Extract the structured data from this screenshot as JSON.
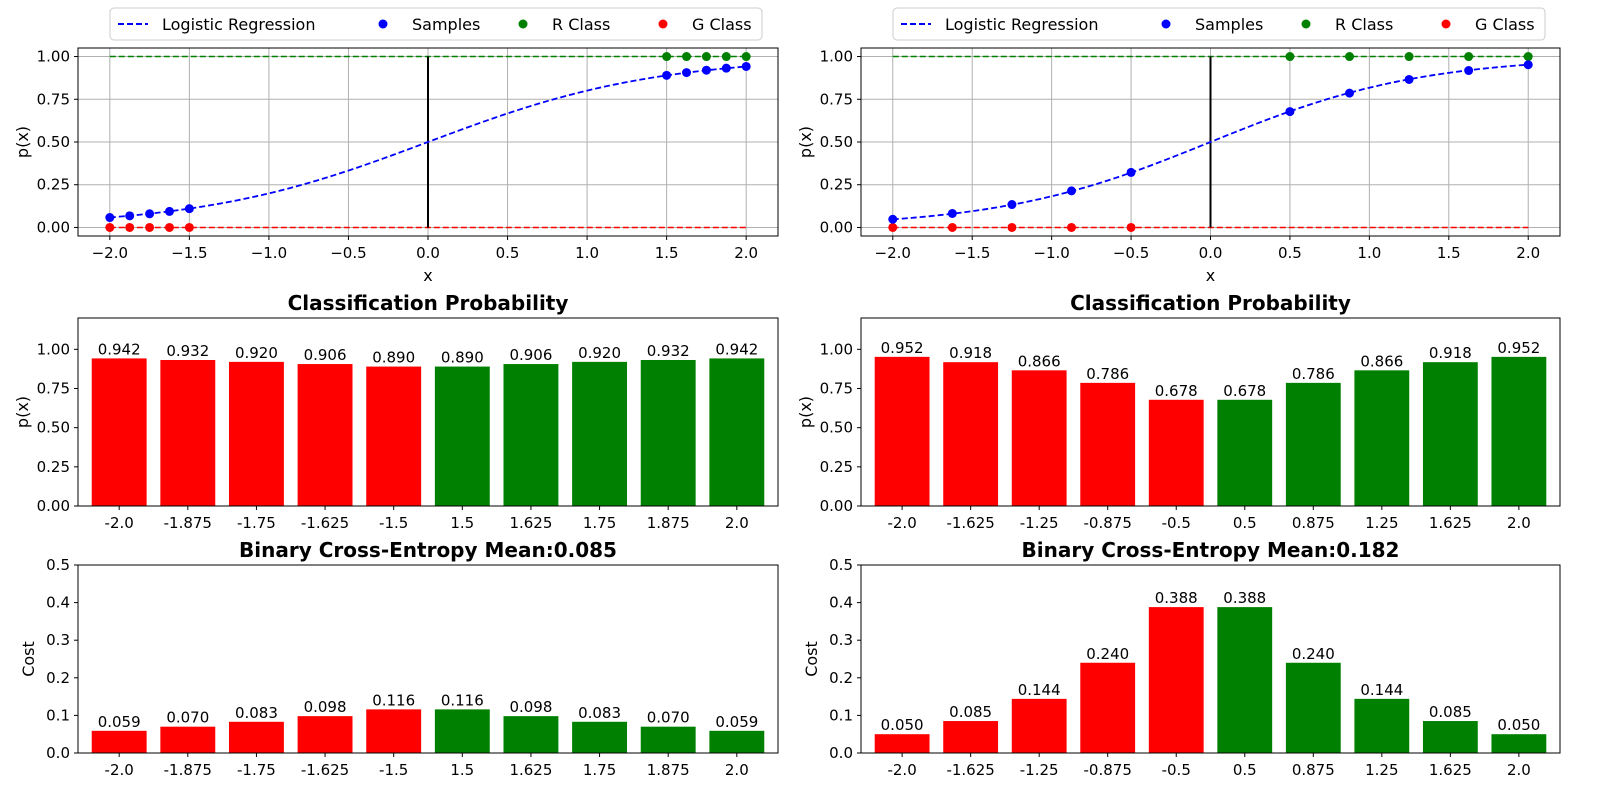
{
  "colors": {
    "line": "#0000ff",
    "samples": "#0000ff",
    "r_class": "#008000",
    "g_class": "#ff0000",
    "grid": "#b0b0b0",
    "boundary": "#000000"
  },
  "chart_data": [
    {
      "type": "line",
      "panel": "top-left",
      "legend": {
        "placement": "top-center",
        "entries": [
          "Logistic Regression",
          "Samples",
          "R Class",
          "G Class"
        ]
      },
      "xlabel": "x",
      "ylabel": "p(x)",
      "xlim": [
        -2.2,
        2.2
      ],
      "ylim": [
        -0.05,
        1.05
      ],
      "xticks": [
        -2.0,
        -1.5,
        -1.0,
        -0.5,
        0.0,
        0.5,
        1.0,
        1.5,
        2.0
      ],
      "xtick_labels": [
        "−2.0",
        "−1.5",
        "−1.0",
        "−0.5",
        "0.0",
        "0.5",
        "1.0",
        "1.5",
        "2.0"
      ],
      "yticks": [
        0,
        0.25,
        0.5,
        0.75,
        1.0
      ],
      "ytick_labels": [
        "0.00",
        "0.25",
        "0.50",
        "0.75",
        "1.00"
      ],
      "grid": true,
      "curve_k": 1.39,
      "boundary_x": 0,
      "sample_x": [
        -2.0,
        -1.875,
        -1.75,
        -1.625,
        -1.5,
        1.5,
        1.625,
        1.75,
        1.875,
        2.0
      ],
      "sample_p": [
        0.058,
        0.068,
        0.08,
        0.094,
        0.11,
        0.89,
        0.906,
        0.92,
        0.932,
        0.942
      ],
      "g_class_x": [
        -2.0,
        -1.875,
        -1.75,
        -1.625,
        -1.5
      ],
      "r_class_x": [
        1.5,
        1.625,
        1.75,
        1.875,
        2.0
      ]
    },
    {
      "type": "line",
      "panel": "top-right",
      "legend": {
        "placement": "top-center",
        "entries": [
          "Logistic Regression",
          "Samples",
          "R Class",
          "G Class"
        ]
      },
      "xlabel": "x",
      "ylabel": "p(x)",
      "xlim": [
        -2.2,
        2.2
      ],
      "ylim": [
        -0.05,
        1.05
      ],
      "xticks": [
        -2.0,
        -1.5,
        -1.0,
        -0.5,
        0.0,
        0.5,
        1.0,
        1.5,
        2.0
      ],
      "xtick_labels": [
        "−2.0",
        "−1.5",
        "−1.0",
        "−0.5",
        "0.0",
        "0.5",
        "1.0",
        "1.5",
        "2.0"
      ],
      "yticks": [
        0,
        0.25,
        0.5,
        0.75,
        1.0
      ],
      "ytick_labels": [
        "0.00",
        "0.25",
        "0.50",
        "0.75",
        "1.00"
      ],
      "grid": true,
      "curve_k": 1.5,
      "boundary_x": 0,
      "sample_x": [
        -2.0,
        -1.625,
        -1.25,
        -0.875,
        -0.5,
        0.5,
        0.875,
        1.25,
        1.625,
        2.0
      ],
      "sample_p": [
        0.048,
        0.082,
        0.134,
        0.214,
        0.322,
        0.678,
        0.786,
        0.866,
        0.918,
        0.952
      ],
      "g_class_x": [
        -2.0,
        -1.625,
        -1.25,
        -0.875,
        -0.5
      ],
      "r_class_x": [
        0.5,
        0.875,
        1.25,
        1.625,
        2.0
      ]
    },
    {
      "type": "bar",
      "panel": "middle-left",
      "title": "Classification Probability",
      "ylabel": "p(x)",
      "ylim": [
        0,
        1.2
      ],
      "yticks": [
        0,
        0.25,
        0.5,
        0.75,
        1.0
      ],
      "ytick_labels": [
        "0.00",
        "0.25",
        "0.50",
        "0.75",
        "1.00"
      ],
      "categories": [
        "-2.0",
        "-1.875",
        "-1.75",
        "-1.625",
        "-1.5",
        "1.5",
        "1.625",
        "1.75",
        "1.875",
        "2.0"
      ],
      "values": [
        0.942,
        0.932,
        0.92,
        0.906,
        0.89,
        0.89,
        0.906,
        0.92,
        0.932,
        0.942
      ],
      "value_labels": [
        "0.942",
        "0.932",
        "0.920",
        "0.906",
        "0.890",
        "0.890",
        "0.906",
        "0.920",
        "0.932",
        "0.942"
      ],
      "bar_classes": [
        "G",
        "G",
        "G",
        "G",
        "G",
        "R",
        "R",
        "R",
        "R",
        "R"
      ]
    },
    {
      "type": "bar",
      "panel": "middle-right",
      "title": "Classification Probability",
      "ylabel": "p(x)",
      "ylim": [
        0,
        1.2
      ],
      "yticks": [
        0,
        0.25,
        0.5,
        0.75,
        1.0
      ],
      "ytick_labels": [
        "0.00",
        "0.25",
        "0.50",
        "0.75",
        "1.00"
      ],
      "categories": [
        "-2.0",
        "-1.625",
        "-1.25",
        "-0.875",
        "-0.5",
        "0.5",
        "0.875",
        "1.25",
        "1.625",
        "2.0"
      ],
      "values": [
        0.952,
        0.918,
        0.866,
        0.786,
        0.678,
        0.678,
        0.786,
        0.866,
        0.918,
        0.952
      ],
      "value_labels": [
        "0.952",
        "0.918",
        "0.866",
        "0.786",
        "0.678",
        "0.678",
        "0.786",
        "0.866",
        "0.918",
        "0.952"
      ],
      "bar_classes": [
        "G",
        "G",
        "G",
        "G",
        "G",
        "R",
        "R",
        "R",
        "R",
        "R"
      ]
    },
    {
      "type": "bar",
      "panel": "bottom-left",
      "title": "Binary Cross-Entropy Mean:0.085",
      "ylabel": "Cost",
      "ylim": [
        0,
        0.5
      ],
      "yticks": [
        0,
        0.1,
        0.2,
        0.3,
        0.4,
        0.5
      ],
      "ytick_labels": [
        "0.0",
        "0.1",
        "0.2",
        "0.3",
        "0.4",
        "0.5"
      ],
      "categories": [
        "-2.0",
        "-1.875",
        "-1.75",
        "-1.625",
        "-1.5",
        "1.5",
        "1.625",
        "1.75",
        "1.875",
        "2.0"
      ],
      "values": [
        0.059,
        0.07,
        0.083,
        0.098,
        0.116,
        0.116,
        0.098,
        0.083,
        0.07,
        0.059
      ],
      "value_labels": [
        "0.059",
        "0.070",
        "0.083",
        "0.098",
        "0.116",
        "0.116",
        "0.098",
        "0.083",
        "0.070",
        "0.059"
      ],
      "bar_classes": [
        "G",
        "G",
        "G",
        "G",
        "G",
        "R",
        "R",
        "R",
        "R",
        "R"
      ]
    },
    {
      "type": "bar",
      "panel": "bottom-right",
      "title": "Binary Cross-Entropy Mean:0.182",
      "ylabel": "Cost",
      "ylim": [
        0,
        0.5
      ],
      "yticks": [
        0,
        0.1,
        0.2,
        0.3,
        0.4,
        0.5
      ],
      "ytick_labels": [
        "0.0",
        "0.1",
        "0.2",
        "0.3",
        "0.4",
        "0.5"
      ],
      "categories": [
        "-2.0",
        "-1.625",
        "-1.25",
        "-0.875",
        "-0.5",
        "0.5",
        "0.875",
        "1.25",
        "1.625",
        "2.0"
      ],
      "values": [
        0.05,
        0.085,
        0.144,
        0.24,
        0.388,
        0.388,
        0.24,
        0.144,
        0.085,
        0.05
      ],
      "value_labels": [
        "0.050",
        "0.085",
        "0.144",
        "0.240",
        "0.388",
        "0.388",
        "0.240",
        "0.144",
        "0.085",
        "0.050"
      ],
      "bar_classes": [
        "G",
        "G",
        "G",
        "G",
        "G",
        "R",
        "R",
        "R",
        "R",
        "R"
      ]
    }
  ]
}
